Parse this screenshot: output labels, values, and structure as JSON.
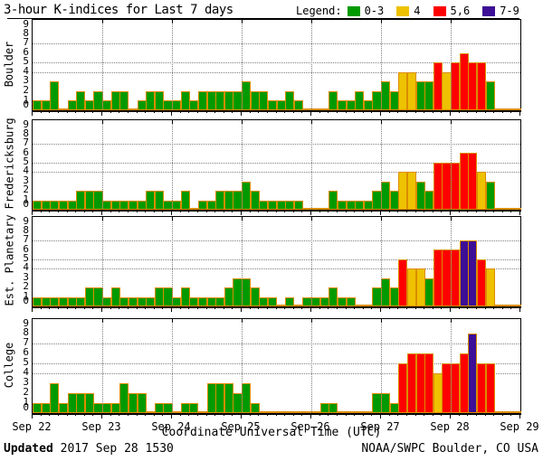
{
  "title": "3-hour K-indices for Last 7 days",
  "legend": {
    "label": "Legend:",
    "items": [
      {
        "label": "0-3",
        "color": "#009a00"
      },
      {
        "label": "4",
        "color": "#eec200"
      },
      {
        "label": "5,6",
        "color": "#fe0000"
      },
      {
        "label": "7-9",
        "color": "#3d0e96"
      }
    ]
  },
  "x_axis": {
    "title": "Coordinate Universal Time (UTC)",
    "day_labels": [
      "Sep 22",
      "Sep 23",
      "Sep 24",
      "Sep 25",
      "Sep 26",
      "Sep 27",
      "Sep 28",
      "Sep 29"
    ]
  },
  "y_axis": {
    "tick_labels": [
      "0",
      "1",
      "2",
      "3",
      "4",
      "5",
      "6",
      "7",
      "8",
      "9"
    ],
    "range": [
      0,
      9
    ],
    "dotted_levels": [
      4,
      5,
      7
    ]
  },
  "footer": {
    "updated_label": "Updated",
    "updated_value": " 2017 Sep 28 1530",
    "credit": "NOAA/SWPC Boulder, CO USA"
  },
  "colors": {
    "green": "#009a00",
    "yellow": "#eec200",
    "red": "#fe0000",
    "purple": "#3d0e96",
    "bar_outline": "#db8c00",
    "grid": "#808080",
    "axis": "#000000",
    "background": "#ffffff"
  },
  "chart_data": {
    "type": "bar",
    "title": "3-hour K-indices for Last 7 days",
    "bars_per_day": 8,
    "x_days": [
      "Sep 22",
      "Sep 23",
      "Sep 24",
      "Sep 25",
      "Sep 26",
      "Sep 27",
      "Sep 28"
    ],
    "ylim": [
      0,
      9
    ],
    "grid_levels": [
      4,
      5,
      7
    ],
    "color_rule": {
      "0-3": "green",
      "4": "yellow",
      "5,6": "red",
      "7-9": "purple"
    },
    "series": [
      {
        "name": "Boulder",
        "k_values": [
          1,
          1,
          3,
          0,
          1,
          2,
          1,
          2,
          1,
          2,
          2,
          0,
          1,
          2,
          2,
          1,
          1,
          2,
          1,
          2,
          2,
          2,
          2,
          2,
          3,
          2,
          2,
          1,
          1,
          2,
          1,
          0,
          0,
          0,
          2,
          1,
          1,
          2,
          1,
          2,
          3,
          2,
          4,
          4,
          3,
          3,
          5,
          4,
          5,
          6,
          5,
          5,
          3
        ]
      },
      {
        "name": "Fredericksburg",
        "k_values": [
          1,
          1,
          1,
          1,
          1,
          2,
          2,
          2,
          1,
          1,
          1,
          1,
          1,
          2,
          2,
          1,
          1,
          2,
          0,
          1,
          1,
          2,
          2,
          2,
          3,
          2,
          1,
          1,
          1,
          1,
          1,
          0,
          0,
          0,
          2,
          1,
          1,
          1,
          1,
          2,
          3,
          2,
          4,
          4,
          3,
          2,
          5,
          5,
          5,
          6,
          6,
          4,
          3
        ]
      },
      {
        "name": "Est. Planetary",
        "k_values": [
          1,
          1,
          1,
          1,
          1,
          1,
          2,
          2,
          1,
          2,
          1,
          1,
          1,
          1,
          2,
          2,
          1,
          2,
          1,
          1,
          1,
          1,
          2,
          3,
          3,
          2,
          1,
          1,
          0,
          1,
          0,
          1,
          1,
          1,
          2,
          1,
          1,
          0,
          0,
          2,
          3,
          2,
          5,
          4,
          4,
          3,
          6,
          6,
          6,
          7,
          7,
          5,
          4
        ]
      },
      {
        "name": "College",
        "k_values": [
          1,
          1,
          3,
          1,
          2,
          2,
          2,
          1,
          1,
          1,
          3,
          2,
          2,
          0,
          1,
          1,
          0,
          1,
          1,
          0,
          3,
          3,
          3,
          2,
          3,
          1,
          0,
          0,
          0,
          0,
          0,
          0,
          0,
          1,
          1,
          0,
          0,
          0,
          0,
          2,
          2,
          1,
          5,
          6,
          6,
          6,
          4,
          5,
          5,
          6,
          8,
          5,
          5
        ]
      }
    ]
  }
}
